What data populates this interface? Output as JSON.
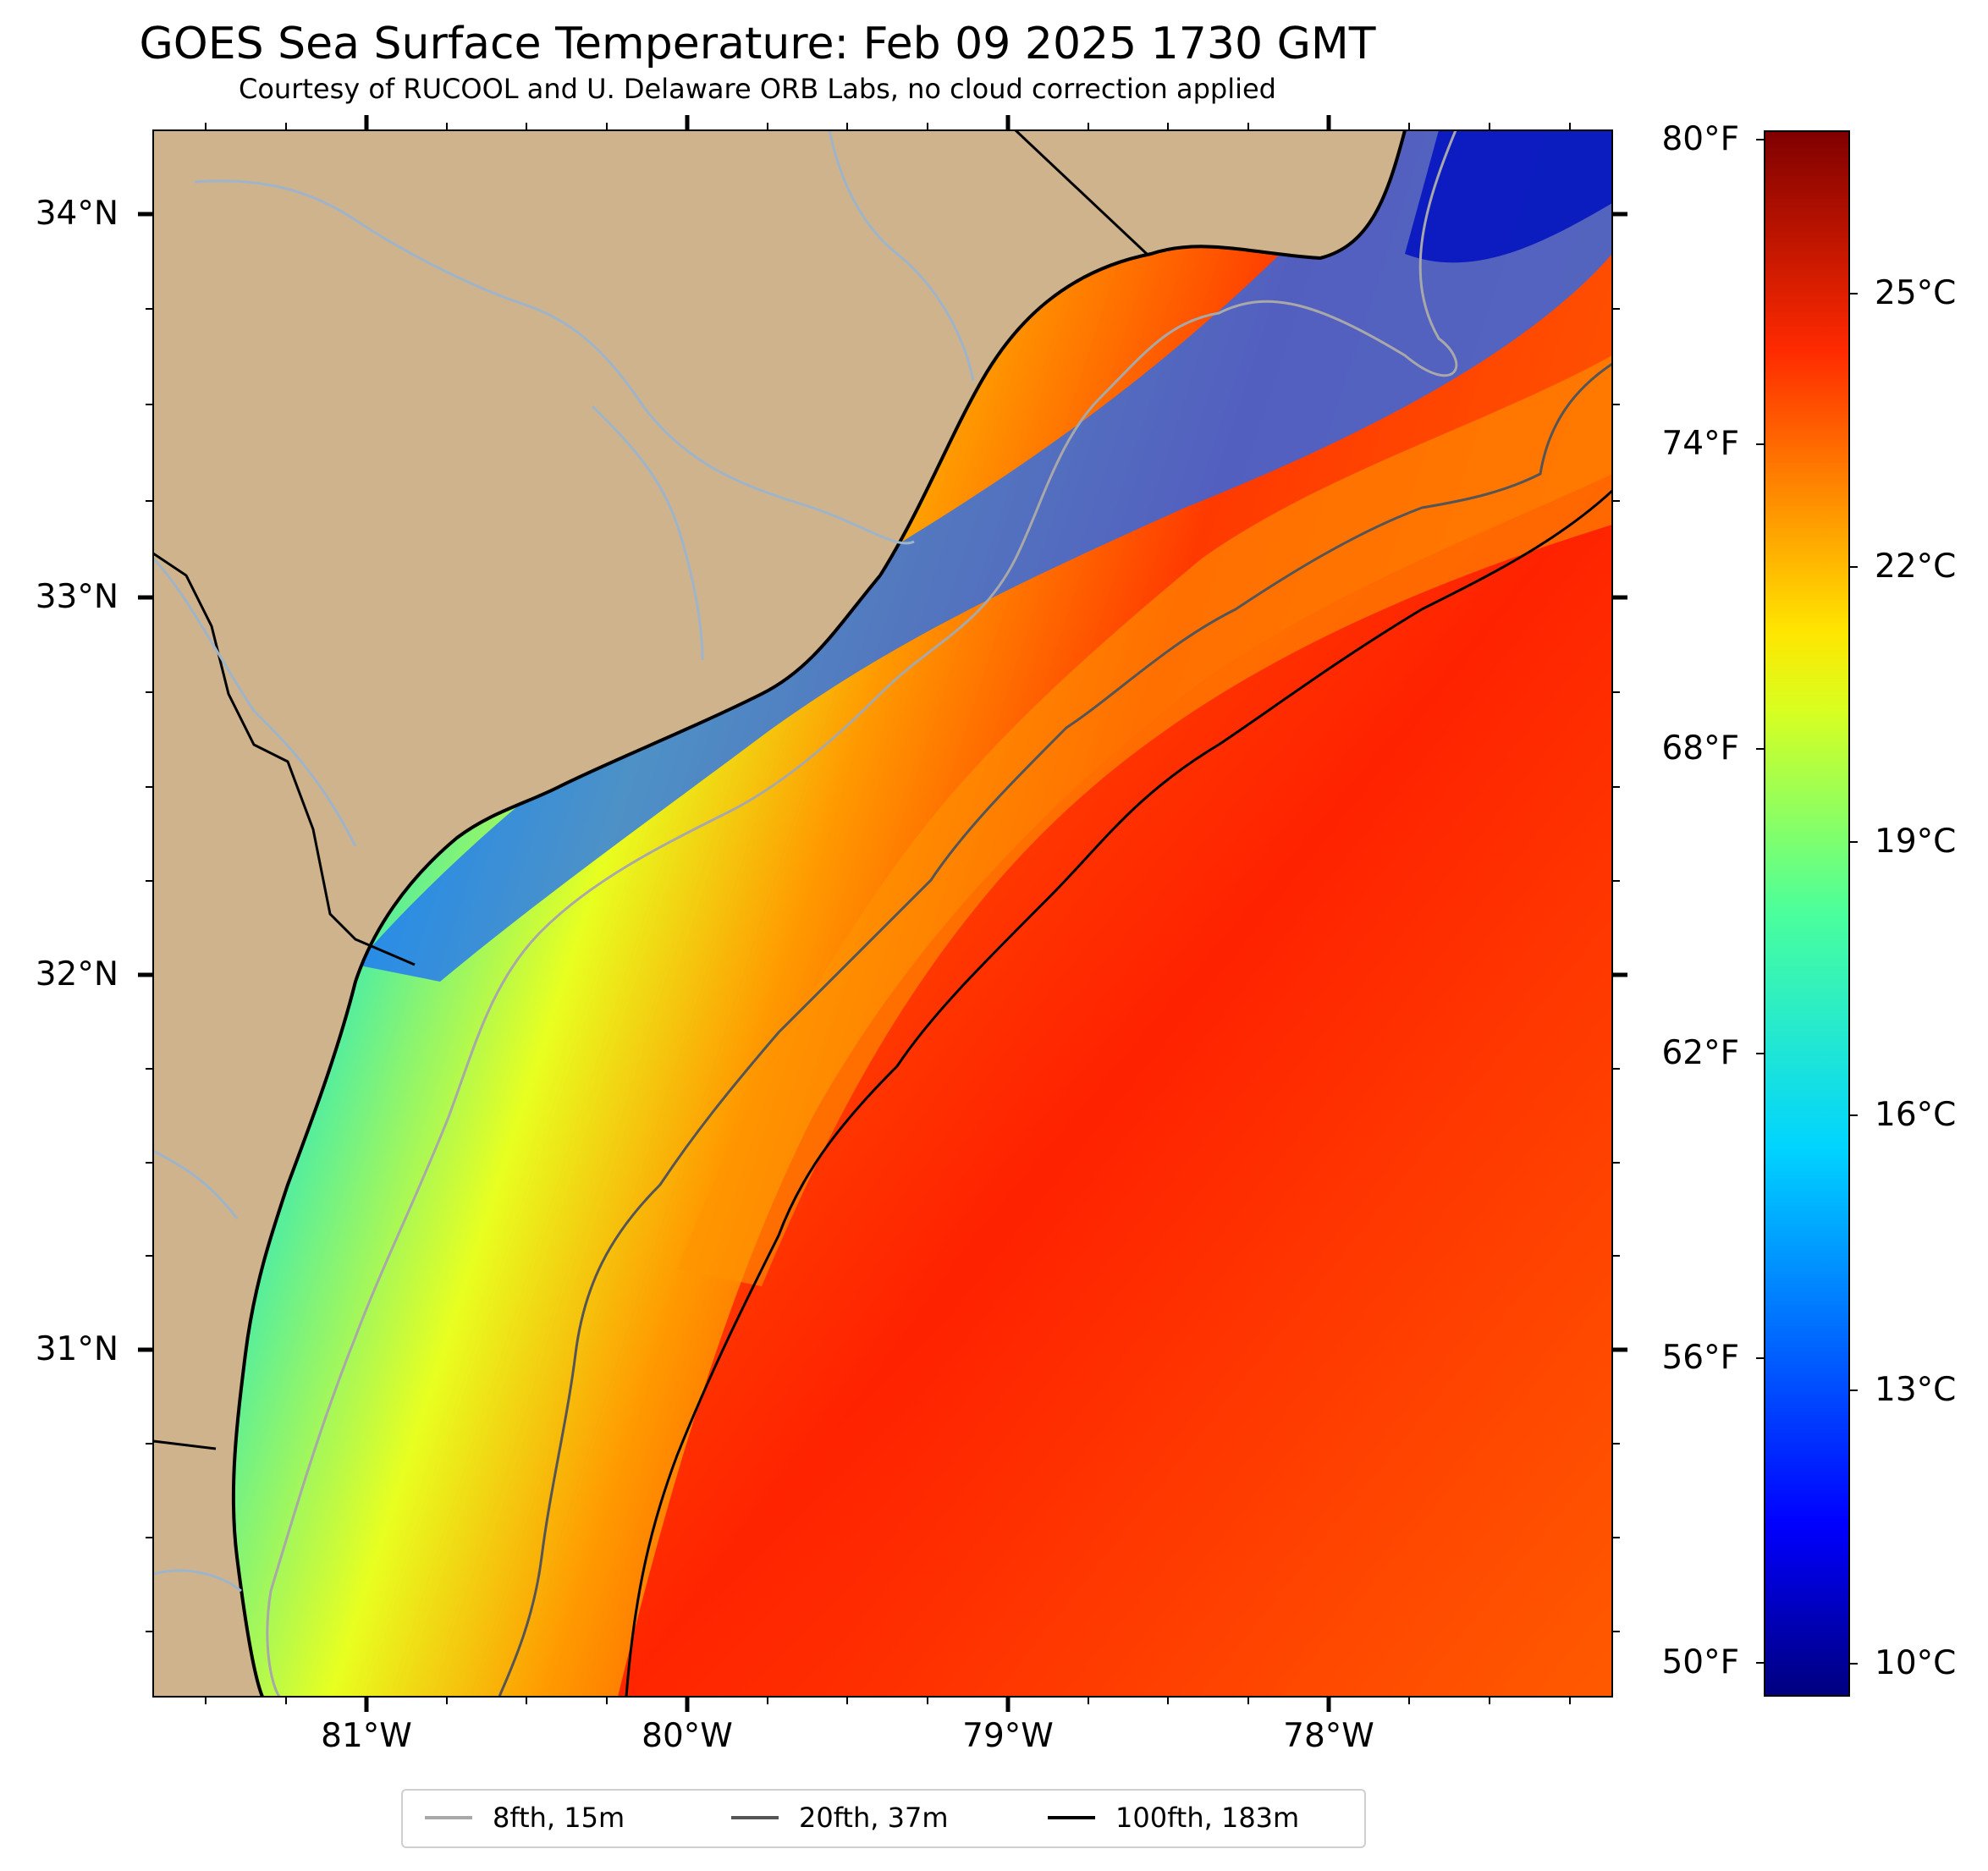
{
  "title": "GOES Sea Surface Temperature: Feb 09 2025 1730 GMT",
  "subtitle": "Courtesy of RUCOOL and U. Delaware ORB Labs, no cloud correction applied",
  "axes": {
    "lat_labels": [
      "34°N",
      "33°N",
      "32°N",
      "31°N"
    ],
    "lon_labels": [
      "81°W",
      "80°W",
      "79°W",
      "78°W"
    ]
  },
  "colorbar": {
    "f_labels": [
      "80°F",
      "74°F",
      "68°F",
      "62°F",
      "56°F",
      "50°F"
    ],
    "c_labels": [
      "25°C",
      "22°C",
      "19°C",
      "16°C",
      "13°C",
      "10°C"
    ],
    "range_c": [
      9.5,
      26.7
    ]
  },
  "legend": [
    {
      "label": "8fth, 15m",
      "color": "#a8a8a8"
    },
    {
      "label": "20fth, 37m",
      "color": "#555555"
    },
    {
      "label": "100fth, 183m",
      "color": "#000000"
    }
  ],
  "colors": {
    "land": "#cfb38d",
    "river": "#9fb4c9",
    "coast": "#000000",
    "nodata": "#ffffff"
  }
}
